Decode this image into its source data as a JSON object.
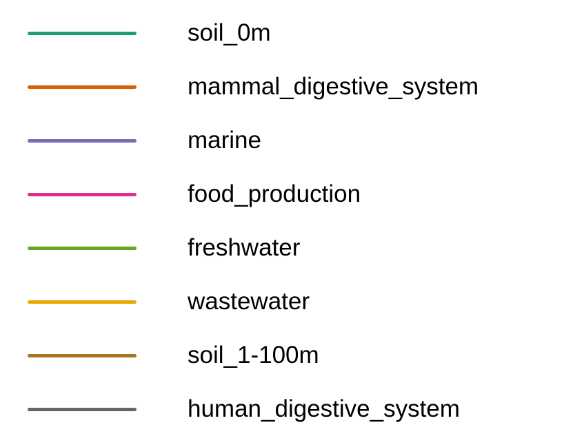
{
  "chart_data": {
    "type": "line",
    "title": "",
    "legend_placement": "full-panel",
    "series": [
      {
        "name": "soil_0m",
        "color": "#1b9e77"
      },
      {
        "name": "mammal_digestive_system",
        "color": "#d95f02"
      },
      {
        "name": "marine",
        "color": "#7570b3"
      },
      {
        "name": "food_production",
        "color": "#e7298a"
      },
      {
        "name": "freshwater",
        "color": "#66a61e"
      },
      {
        "name": "wastewater",
        "color": "#e6ab02"
      },
      {
        "name": "soil_1-100m",
        "color": "#a6761d"
      },
      {
        "name": "human_digestive_system",
        "color": "#666666"
      }
    ]
  }
}
